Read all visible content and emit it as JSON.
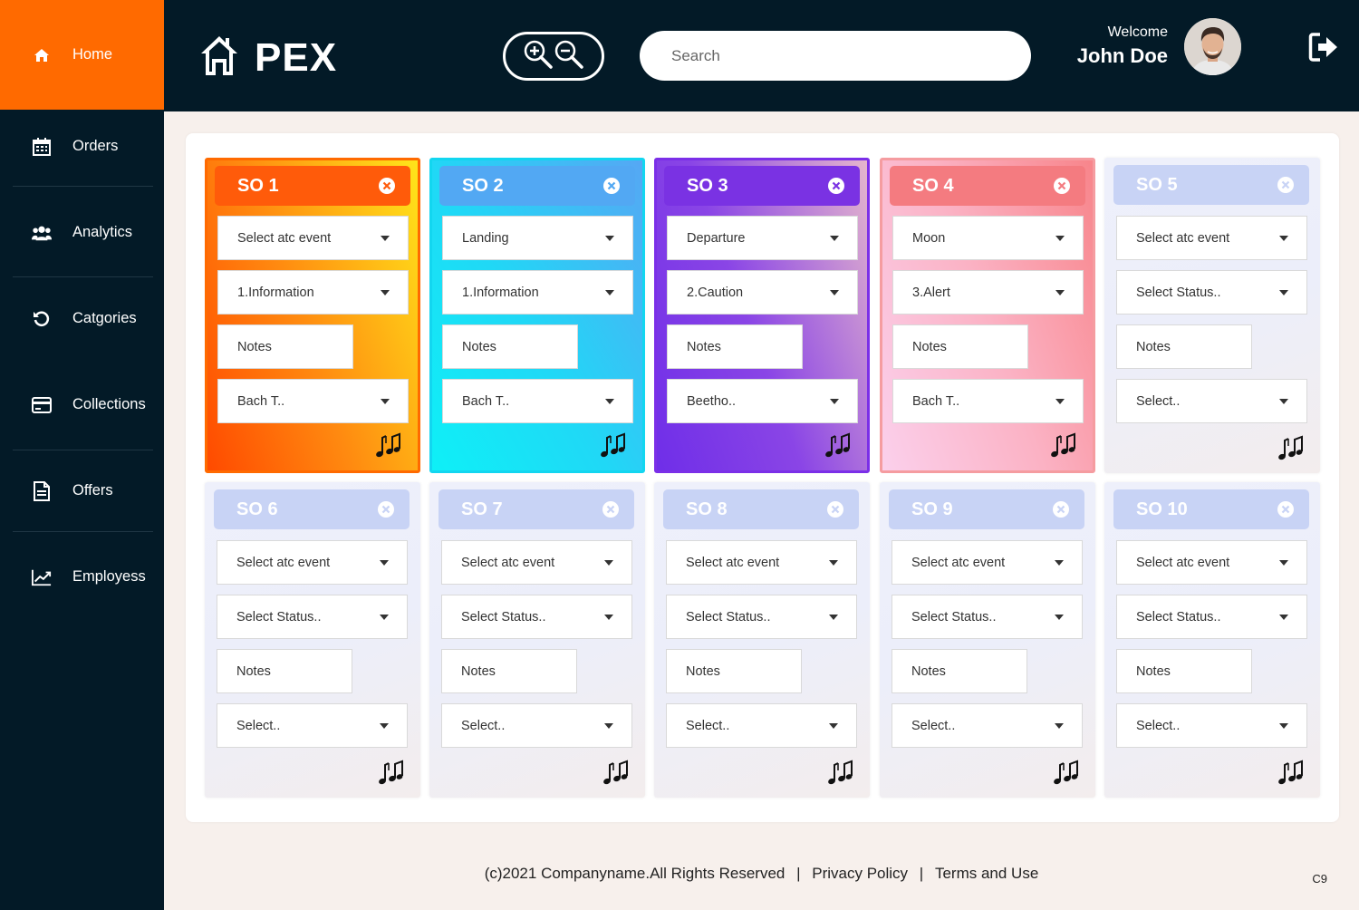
{
  "sidebar": {
    "items": [
      {
        "label": "Home",
        "icon": "home-icon"
      },
      {
        "label": "Orders",
        "icon": "calendar-icon"
      },
      {
        "label": "Analytics",
        "icon": "users-icon"
      },
      {
        "label": "Catgories",
        "icon": "refresh-icon"
      },
      {
        "label": "Collections",
        "icon": "credit-card-icon"
      },
      {
        "label": "Offers",
        "icon": "document-icon"
      },
      {
        "label": "Employess",
        "icon": "line-chart-icon"
      }
    ],
    "active_color": "#ff6a00",
    "bg_color": "#031a27"
  },
  "header": {
    "brand": "PEX",
    "search_placeholder": "Search",
    "welcome": "Welcome",
    "user_name": "John Doe"
  },
  "cards": [
    {
      "title": "SO 1",
      "field1": "Select atc event",
      "field2": "1.Information",
      "notes": "Notes",
      "field4": "Bach T.."
    },
    {
      "title": "SO 2",
      "field1": "Landing",
      "field2": "1.Information",
      "notes": "Notes",
      "field4": "Bach T.."
    },
    {
      "title": "SO 3",
      "field1": "Departure",
      "field2": "2.Caution",
      "notes": "Notes",
      "field4": "Beetho.."
    },
    {
      "title": "SO 4",
      "field1": "Moon",
      "field2": "3.Alert",
      "notes": "Notes",
      "field4": "Bach T.."
    },
    {
      "title": "SO 5",
      "field1": "Select atc event",
      "field2": "Select Status..",
      "notes": "Notes",
      "field4": "Select.."
    },
    {
      "title": "SO 6",
      "field1": "Select atc event",
      "field2": "Select Status..",
      "notes": "Notes",
      "field4": "Select.."
    },
    {
      "title": "SO 7",
      "field1": "Select atc event",
      "field2": "Select Status..",
      "notes": "Notes",
      "field4": "Select.."
    },
    {
      "title": "SO 8",
      "field1": "Select atc event",
      "field2": "Select Status..",
      "notes": "Notes",
      "field4": "Select.."
    },
    {
      "title": "SO 9",
      "field1": "Select atc event",
      "field2": "Select Status..",
      "notes": "Notes",
      "field4": "Select.."
    },
    {
      "title": "SO 10",
      "field1": "Select atc event",
      "field2": "Select Status..",
      "notes": "Notes",
      "field4": "Select.."
    }
  ],
  "footer": {
    "copyright": "(c)2021 Companyname.All Rights Reserved",
    "separator": "|",
    "privacy": "Privacy Policy",
    "terms": "Terms and Use",
    "page_code": "C9"
  }
}
